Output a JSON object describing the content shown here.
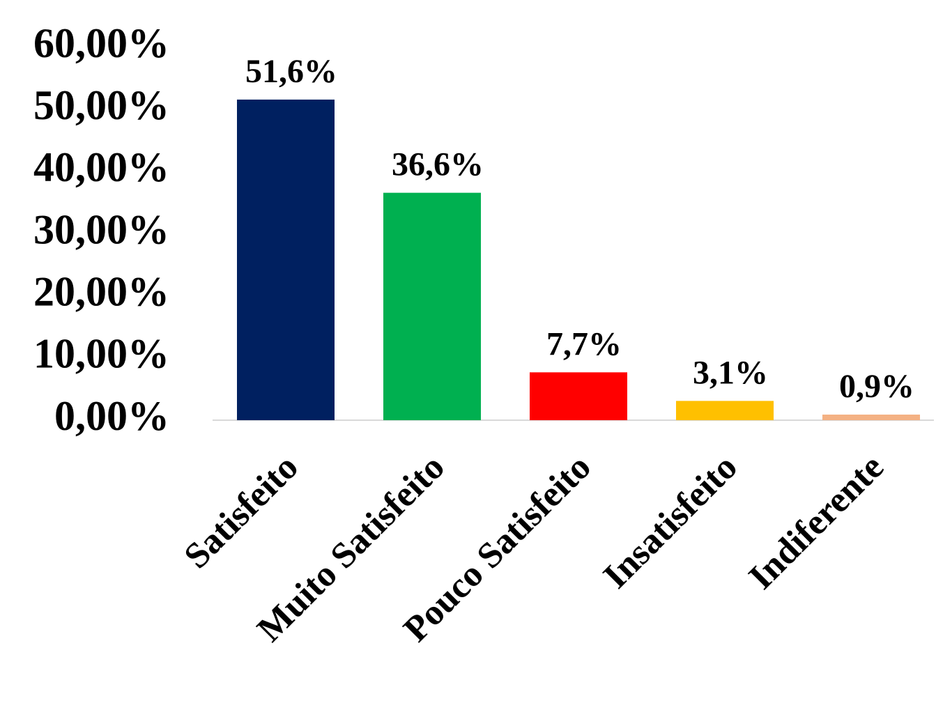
{
  "chart_data": {
    "type": "bar",
    "categories": [
      "Satisfeito",
      "Muito Satisfeito",
      "Pouco Satisfeito",
      "Insatisfeito",
      "Indiferente"
    ],
    "values": [
      51.6,
      36.6,
      7.7,
      3.1,
      0.9
    ],
    "value_labels": [
      "51,6%",
      "36,6%",
      "7,7%",
      "3,1%",
      "0,9%"
    ],
    "colors": [
      "#002060",
      "#00b050",
      "#ff0000",
      "#ffc000",
      "#f4b183"
    ],
    "ylim": [
      0,
      60
    ],
    "yticks": [
      {
        "value": 0,
        "label": "0,00%"
      },
      {
        "value": 10,
        "label": "10,00%"
      },
      {
        "value": 20,
        "label": "20,00%"
      },
      {
        "value": 30,
        "label": "30,00%"
      },
      {
        "value": 40,
        "label": "40,00%"
      },
      {
        "value": 50,
        "label": "50,00%"
      },
      {
        "value": 60,
        "label": "60,00%"
      }
    ],
    "grid": false
  }
}
